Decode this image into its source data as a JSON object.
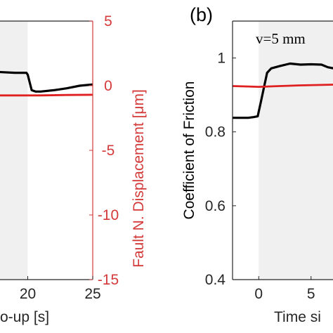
{
  "chart_data": [
    {
      "type": "line",
      "panel_label": "",
      "xlabel": "o-up [s]",
      "ylabel_right": "Fault N. Displacement [μm]",
      "x_ticks": [
        "20",
        "25"
      ],
      "y_right_ticks": [
        "5",
        "0",
        "-5",
        "-10",
        "-15"
      ],
      "xlim": [
        17,
        25
      ],
      "ylim_right": [
        -15,
        5
      ],
      "grid": false,
      "shaded_region": {
        "x_start": 17,
        "x_end": 20,
        "color": "#f0f0f0"
      },
      "series": [
        {
          "color": "#000000",
          "x": [
            17,
            18,
            19,
            19.9,
            20.0,
            20.3,
            20.6,
            21,
            22,
            23,
            24,
            25
          ],
          "y": [
            1.1,
            1.05,
            1.0,
            1.0,
            0.85,
            -0.35,
            -0.45,
            -0.45,
            -0.35,
            -0.2,
            0.0,
            0.1
          ]
        },
        {
          "color": "#e02020",
          "axis": "right",
          "x": [
            17,
            19,
            21,
            23,
            25
          ],
          "y": [
            -0.75,
            -0.75,
            -0.75,
            -0.72,
            -0.7
          ]
        }
      ],
      "colors": {
        "right_axis": "#d43a3a",
        "black_series": "#000000",
        "red_series": "#e02020"
      }
    },
    {
      "type": "line",
      "panel_label": "(b)",
      "annotation": "v=5 mm",
      "xlabel": "Time si",
      "ylabel": "Coefficient of Friction",
      "x_ticks": [
        "0",
        "5"
      ],
      "y_ticks": [
        "1",
        "0.8",
        "0.6",
        "0.4"
      ],
      "xlim": [
        -2.5,
        7.5
      ],
      "ylim": [
        0.4,
        1.1
      ],
      "grid": false,
      "shaded_region": {
        "x_start": 0,
        "x_end": 7.5,
        "color": "#f0f0f0"
      },
      "series": [
        {
          "color": "#000000",
          "x": [
            -2.5,
            -1,
            -0.5,
            -0.1,
            0.2,
            0.5,
            0.8,
            1.2,
            2,
            3,
            4,
            5,
            6,
            6.6,
            7.5
          ],
          "y": [
            0.838,
            0.838,
            0.84,
            0.842,
            0.88,
            0.92,
            0.96,
            0.972,
            0.978,
            0.985,
            0.982,
            0.983,
            0.982,
            0.975,
            0.97
          ]
        },
        {
          "color": "#e02020",
          "x": [
            -2.5,
            -1,
            0,
            2,
            4,
            6,
            7.5
          ],
          "y": [
            0.924,
            0.923,
            0.922,
            0.924,
            0.926,
            0.927,
            0.928
          ]
        }
      ]
    }
  ]
}
